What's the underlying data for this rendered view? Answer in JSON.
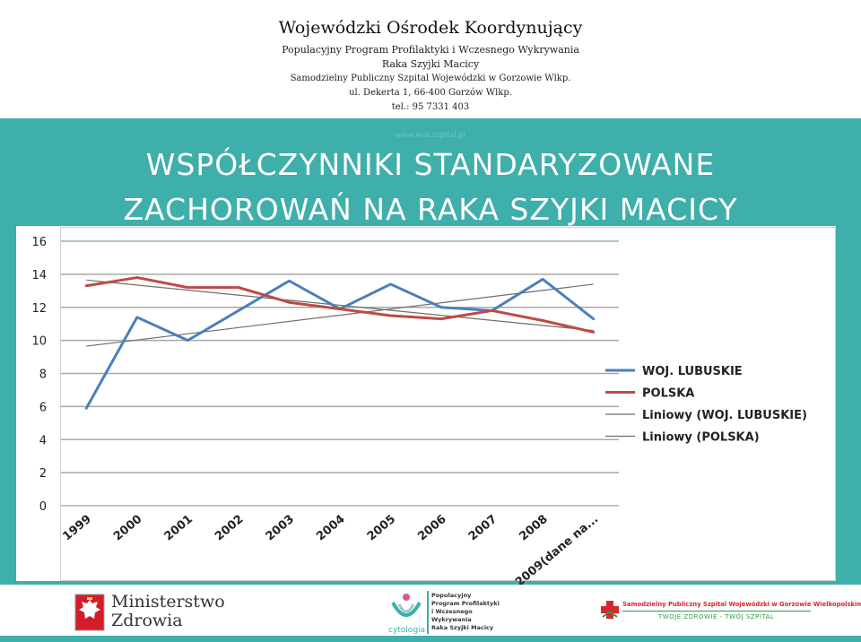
{
  "header": {
    "title": "Wojewódzki Ośrodek Koordynujący",
    "line1": "Populacyjny Program Profilaktyki i Wczesnego Wykrywania",
    "line2": "Raka Szyjki Macicy",
    "line3": "Samodzielny Publiczny Szpital Wojewódzki w Gorzowie Wlkp.",
    "line4": "ul. Dekerta 1, 66-400 Gorzów Wlkp.",
    "line5": "tel.: 95 7331 403",
    "website": "www.wok.szpital.pl"
  },
  "slide_title": {
    "line1": "WSPÓŁCZYNNIKI STANDARYZOWANE",
    "line2": "ZACHOROWAŃ NA RAKA SZYJKI MACICY"
  },
  "chart_data": {
    "type": "line",
    "categories": [
      "1999",
      "2000",
      "2001",
      "2002",
      "2003",
      "2004",
      "2005",
      "2006",
      "2007",
      "2008",
      "2009(dane na..."
    ],
    "ylim": [
      0,
      16
    ],
    "yticks": [
      0,
      2,
      4,
      6,
      8,
      10,
      12,
      14,
      16
    ],
    "grid": true,
    "legend_position": "right",
    "series": [
      {
        "name": "WOJ. LUBUSKIE",
        "color": "#4a7fbb",
        "values": [
          5.9,
          11.4,
          10.0,
          11.8,
          13.6,
          11.9,
          13.4,
          12.0,
          11.8,
          13.7,
          11.3
        ]
      },
      {
        "name": "POLSKA",
        "color": "#bf4a45",
        "values": [
          13.3,
          13.8,
          13.2,
          13.2,
          12.3,
          11.9,
          11.5,
          11.3,
          11.8,
          11.2,
          10.5
        ]
      }
    ],
    "trendlines": [
      {
        "name": "Liniowy (WOJ. LUBUSKIE)",
        "color": "#6e6e6e",
        "start": 9.65,
        "end": 13.4
      },
      {
        "name": "Liniowy (POLSKA)",
        "color": "#6e6e6e",
        "start": 13.65,
        "end": 10.6
      }
    ]
  },
  "footer": {
    "ministry_line1": "Ministerstwo",
    "ministry_line2": "Zdrowia",
    "program_lines": [
      "Populacyjny",
      "Program Profilaktyki",
      "i Wczesnego",
      "Wykrywania",
      "Raka Szyjki Macicy"
    ],
    "cytologia": "cytologia",
    "hospital_name": "Samodzielny Publiczny Szpital Wojewódzki w Gorzowie Wielkopolskim",
    "hospital_slogan": "TWOJE ZDROWIE - TWÓJ SZPITAL",
    "accent_color": "#3eafaa"
  }
}
